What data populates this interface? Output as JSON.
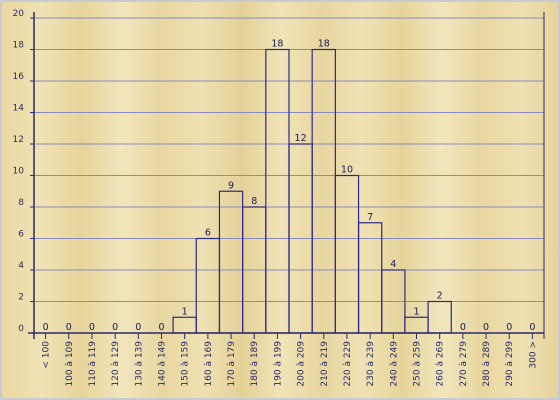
{
  "chart_data": {
    "type": "bar",
    "categories": [
      "< 100",
      "100 à 109",
      "110 à 119",
      "120 à 129",
      "130 à 139",
      "140 à 149",
      "150 à 159",
      "160 à 169",
      "170 à 179",
      "180 à 189",
      "190 à 199",
      "200 à 209",
      "210 à 219",
      "220 à 229",
      "230 à 239",
      "240 à 249",
      "250 à 259",
      "260 à 269",
      "270 à 279",
      "280 à 289",
      "290 à 299",
      "300 >"
    ],
    "values": [
      0,
      0,
      0,
      0,
      0,
      0,
      1,
      6,
      9,
      8,
      18,
      12,
      18,
      10,
      7,
      4,
      1,
      2,
      0,
      0,
      0,
      0
    ],
    "ylim": [
      0,
      20
    ],
    "yticks": [
      0,
      2,
      4,
      6,
      8,
      10,
      12,
      14,
      16,
      18,
      20
    ],
    "grid": true,
    "colors": {
      "bar_stroke": "#2a2a8a",
      "grid": "#8a8ac0",
      "axis": "#2a2a6a",
      "text": "#2a2a6a"
    }
  }
}
